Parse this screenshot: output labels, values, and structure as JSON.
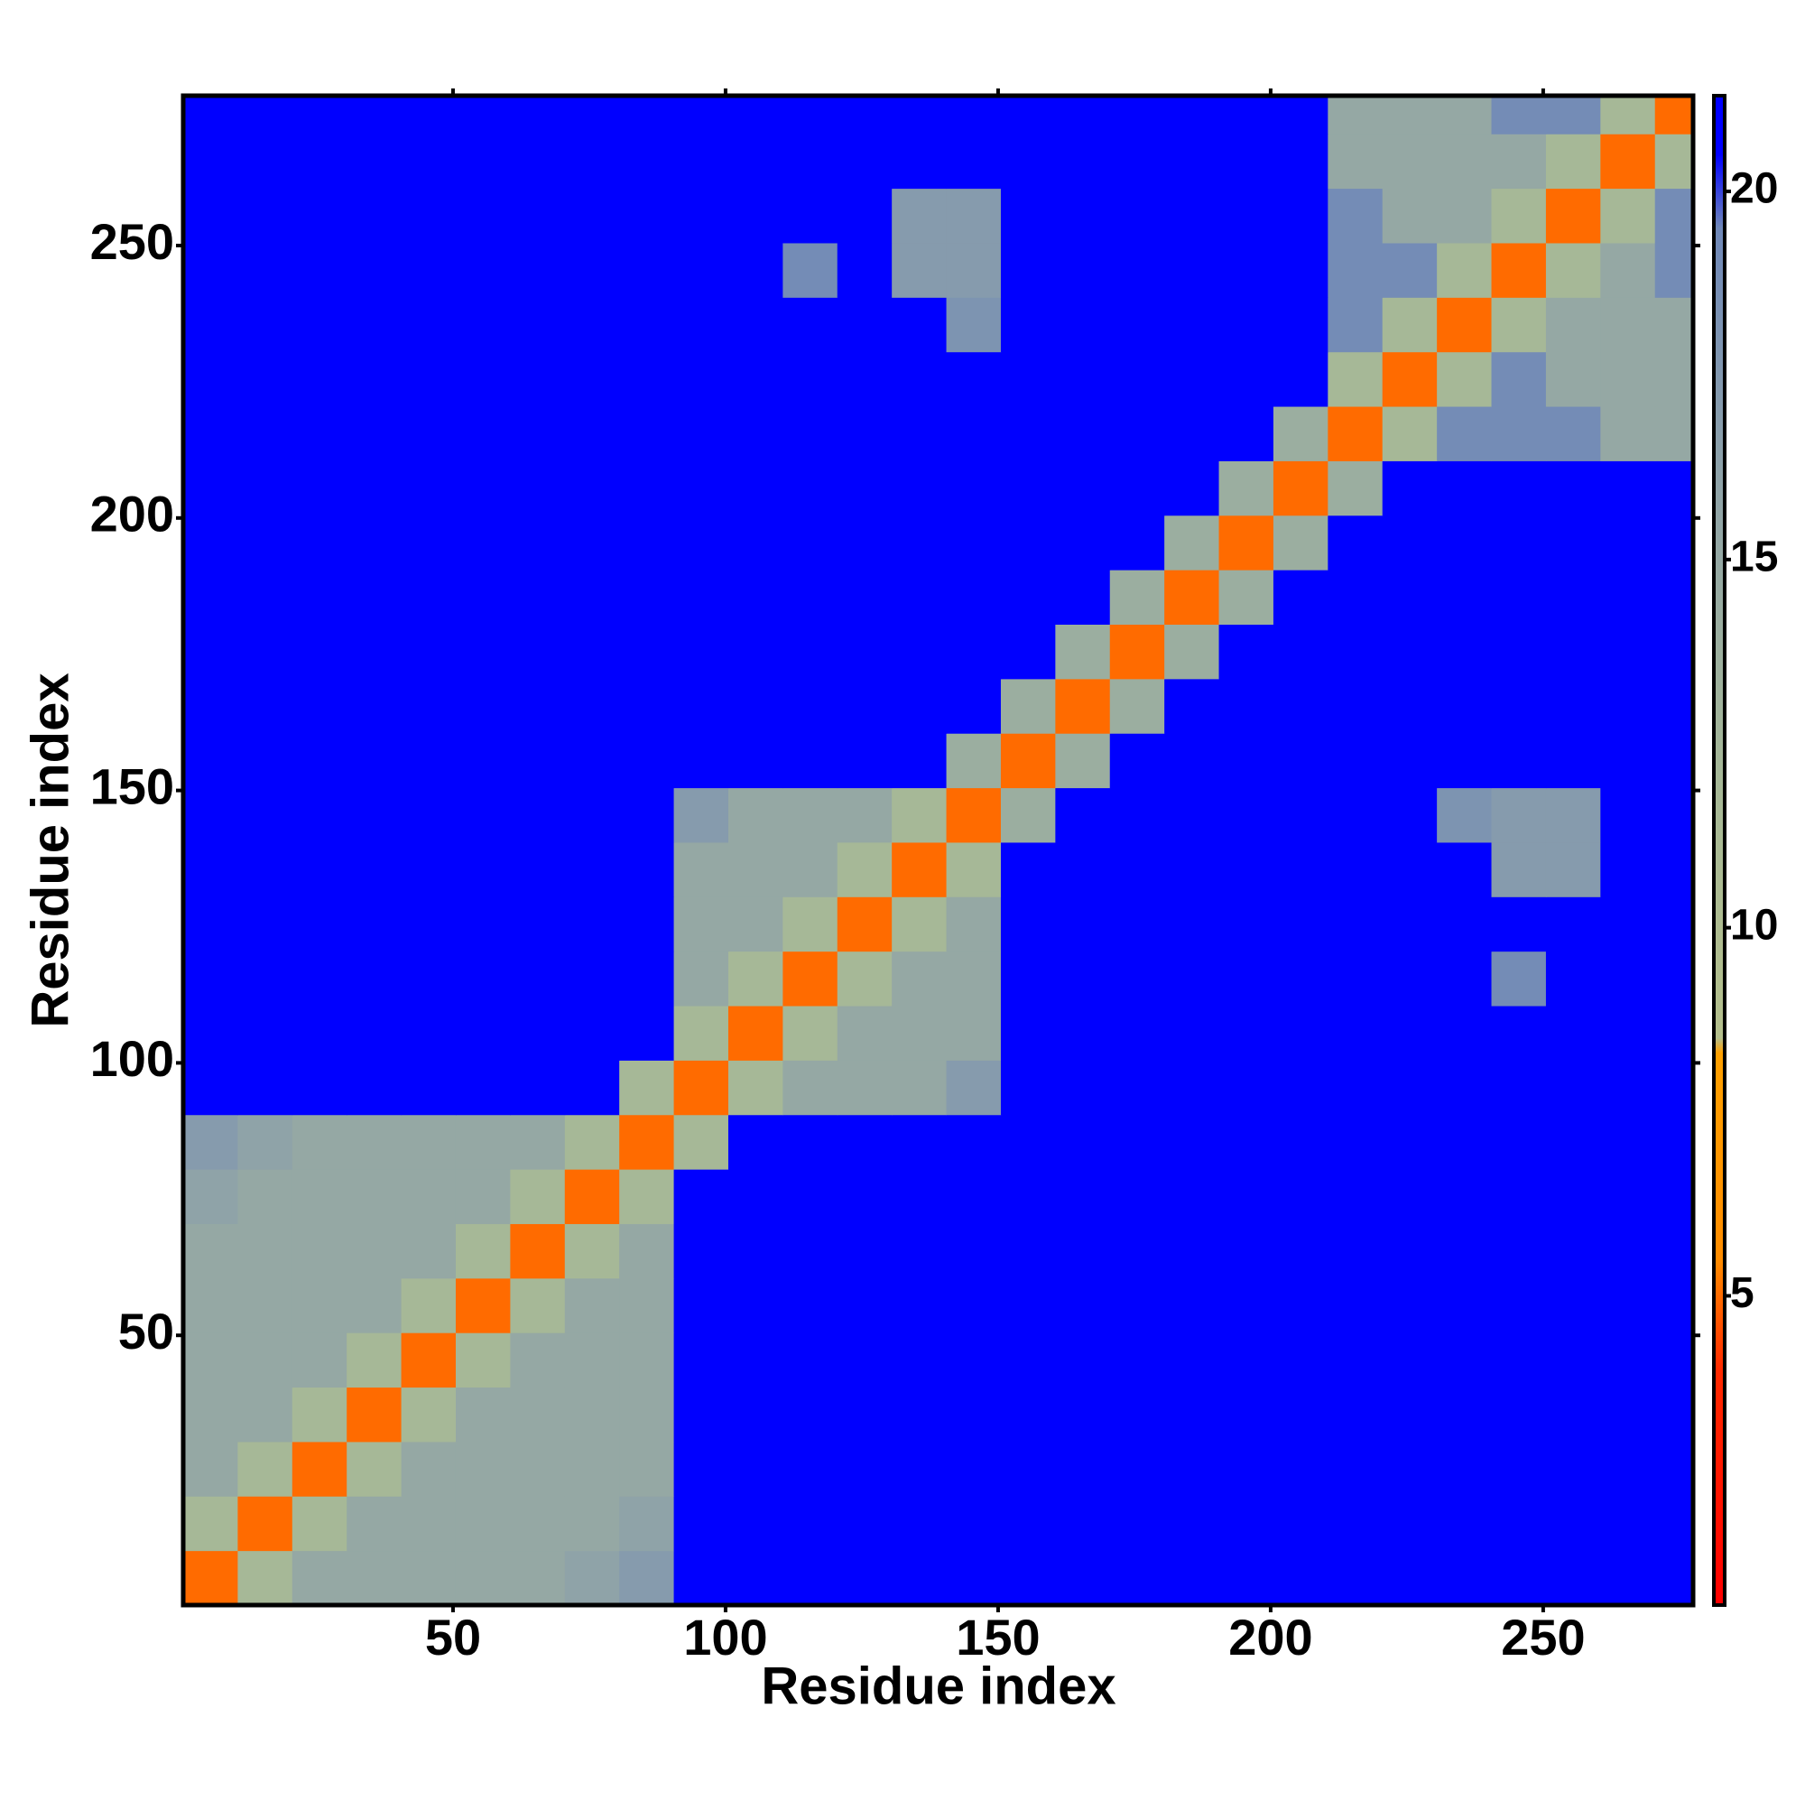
{
  "chart_data": {
    "type": "heatmap",
    "x_label": "Residue index",
    "y_label": "Residue index",
    "bins": [
      0.5,
      10.5,
      20.5,
      30.5,
      40.5,
      50.5,
      60.5,
      70.5,
      80.5,
      90.5,
      100.5,
      110.5,
      120.5,
      130.5,
      140.5,
      150.5,
      160.5,
      170.5,
      180.5,
      190.5,
      200.5,
      210.5,
      220.5,
      230.5,
      240.5,
      250.5,
      260.5,
      270.5,
      277.5
    ],
    "xlim": [
      0.5,
      277.5
    ],
    "ylim": [
      0.5,
      277.5
    ],
    "xticks": [
      50,
      100,
      150,
      200,
      250
    ],
    "yticks": [
      50,
      100,
      150,
      200,
      250
    ],
    "values": [
      [
        5,
        12,
        15,
        15,
        15,
        15,
        15,
        16,
        17,
        21,
        21,
        21,
        21,
        21,
        21,
        21,
        21,
        21,
        21,
        21,
        21,
        21,
        21,
        21,
        21,
        21,
        21,
        21
      ],
      [
        12,
        5,
        12,
        15,
        15,
        15,
        15,
        15,
        16,
        21,
        21,
        21,
        21,
        21,
        21,
        21,
        21,
        21,
        21,
        21,
        21,
        21,
        21,
        21,
        21,
        21,
        21,
        21
      ],
      [
        15,
        12,
        5,
        12,
        15,
        15,
        15,
        15,
        15,
        21,
        21,
        21,
        21,
        21,
        21,
        21,
        21,
        21,
        21,
        21,
        21,
        21,
        21,
        21,
        21,
        21,
        21,
        21
      ],
      [
        15,
        15,
        12,
        5,
        12,
        15,
        15,
        15,
        15,
        21,
        21,
        21,
        21,
        21,
        21,
        21,
        21,
        21,
        21,
        21,
        21,
        21,
        21,
        21,
        21,
        21,
        21,
        21
      ],
      [
        15,
        15,
        15,
        12,
        5,
        12,
        15,
        15,
        15,
        21,
        21,
        21,
        21,
        21,
        21,
        21,
        21,
        21,
        21,
        21,
        21,
        21,
        21,
        21,
        21,
        21,
        21,
        21
      ],
      [
        15,
        15,
        15,
        15,
        12,
        5,
        12,
        15,
        15,
        21,
        21,
        21,
        21,
        21,
        21,
        21,
        21,
        21,
        21,
        21,
        21,
        21,
        21,
        21,
        21,
        21,
        21,
        21
      ],
      [
        15,
        15,
        15,
        15,
        15,
        12,
        5,
        12,
        15,
        21,
        21,
        21,
        21,
        21,
        21,
        21,
        21,
        21,
        21,
        21,
        21,
        21,
        21,
        21,
        21,
        21,
        21,
        21
      ],
      [
        16,
        15,
        15,
        15,
        15,
        15,
        12,
        5,
        12,
        21,
        21,
        21,
        21,
        21,
        21,
        21,
        21,
        21,
        21,
        21,
        21,
        21,
        21,
        21,
        21,
        21,
        21,
        21
      ],
      [
        17,
        16,
        15,
        15,
        15,
        15,
        15,
        12,
        5,
        12,
        21,
        21,
        21,
        21,
        21,
        21,
        21,
        21,
        21,
        21,
        21,
        21,
        21,
        21,
        21,
        21,
        21,
        21
      ],
      [
        21,
        21,
        21,
        21,
        21,
        21,
        21,
        21,
        12,
        5,
        12,
        15,
        15,
        15,
        17,
        21,
        21,
        21,
        21,
        21,
        21,
        21,
        21,
        21,
        21,
        21,
        21,
        21
      ],
      [
        21,
        21,
        21,
        21,
        21,
        21,
        21,
        21,
        21,
        12,
        5,
        12,
        15,
        15,
        15,
        21,
        21,
        21,
        21,
        21,
        21,
        21,
        21,
        21,
        21,
        21,
        21,
        21
      ],
      [
        21,
        21,
        21,
        21,
        21,
        21,
        21,
        21,
        21,
        15,
        12,
        5,
        12,
        15,
        15,
        21,
        21,
        21,
        21,
        21,
        21,
        21,
        21,
        21,
        19,
        21,
        21,
        21
      ],
      [
        21,
        21,
        21,
        21,
        21,
        21,
        21,
        21,
        21,
        15,
        15,
        12,
        5,
        12,
        15,
        21,
        21,
        21,
        21,
        21,
        21,
        21,
        21,
        21,
        21,
        21,
        21,
        21
      ],
      [
        21,
        21,
        21,
        21,
        21,
        21,
        21,
        21,
        21,
        15,
        15,
        15,
        12,
        5,
        12,
        21,
        21,
        21,
        21,
        21,
        21,
        21,
        21,
        21,
        17,
        17,
        21,
        21
      ],
      [
        21,
        21,
        21,
        21,
        21,
        21,
        21,
        21,
        21,
        17,
        15,
        15,
        15,
        12,
        5,
        14,
        21,
        21,
        21,
        21,
        21,
        21,
        21,
        18,
        17,
        17,
        21,
        21
      ],
      [
        21,
        21,
        21,
        21,
        21,
        21,
        21,
        21,
        21,
        21,
        21,
        21,
        21,
        21,
        14,
        5,
        14,
        21,
        21,
        21,
        21,
        21,
        21,
        21,
        21,
        21,
        21,
        21
      ],
      [
        21,
        21,
        21,
        21,
        21,
        21,
        21,
        21,
        21,
        21,
        21,
        21,
        21,
        21,
        21,
        14,
        5,
        14,
        21,
        21,
        21,
        21,
        21,
        21,
        21,
        21,
        21,
        21
      ],
      [
        21,
        21,
        21,
        21,
        21,
        21,
        21,
        21,
        21,
        21,
        21,
        21,
        21,
        21,
        21,
        21,
        14,
        5,
        14,
        21,
        21,
        21,
        21,
        21,
        21,
        21,
        21,
        21
      ],
      [
        21,
        21,
        21,
        21,
        21,
        21,
        21,
        21,
        21,
        21,
        21,
        21,
        21,
        21,
        21,
        21,
        21,
        14,
        5,
        14,
        21,
        21,
        21,
        21,
        21,
        21,
        21,
        21
      ],
      [
        21,
        21,
        21,
        21,
        21,
        21,
        21,
        21,
        21,
        21,
        21,
        21,
        21,
        21,
        21,
        21,
        21,
        21,
        14,
        5,
        14,
        21,
        21,
        21,
        21,
        21,
        21,
        21
      ],
      [
        21,
        21,
        21,
        21,
        21,
        21,
        21,
        21,
        21,
        21,
        21,
        21,
        21,
        21,
        21,
        21,
        21,
        21,
        21,
        14,
        5,
        14,
        21,
        21,
        21,
        21,
        21,
        21
      ],
      [
        21,
        21,
        21,
        21,
        21,
        21,
        21,
        21,
        21,
        21,
        21,
        21,
        21,
        21,
        21,
        21,
        21,
        21,
        21,
        21,
        14,
        5,
        12,
        19,
        19,
        19,
        15,
        15
      ],
      [
        21,
        21,
        21,
        21,
        21,
        21,
        21,
        21,
        21,
        21,
        21,
        21,
        21,
        21,
        21,
        21,
        21,
        21,
        21,
        21,
        21,
        12,
        5,
        12,
        19,
        15,
        15,
        15
      ],
      [
        21,
        21,
        21,
        21,
        21,
        21,
        21,
        21,
        21,
        21,
        21,
        21,
        21,
        21,
        18,
        21,
        21,
        21,
        21,
        21,
        21,
        19,
        12,
        5,
        12,
        15,
        15,
        15
      ],
      [
        21,
        21,
        21,
        21,
        21,
        21,
        21,
        21,
        21,
        21,
        21,
        19,
        21,
        17,
        17,
        21,
        21,
        21,
        21,
        21,
        21,
        19,
        19,
        12,
        5,
        12,
        15,
        19
      ],
      [
        21,
        21,
        21,
        21,
        21,
        21,
        21,
        21,
        21,
        21,
        21,
        21,
        21,
        17,
        17,
        21,
        21,
        21,
        21,
        21,
        21,
        19,
        15,
        15,
        12,
        5,
        12,
        19
      ],
      [
        21,
        21,
        21,
        21,
        21,
        21,
        21,
        21,
        21,
        21,
        21,
        21,
        21,
        21,
        21,
        21,
        21,
        21,
        21,
        21,
        21,
        15,
        15,
        15,
        15,
        12,
        5,
        12
      ],
      [
        21,
        21,
        21,
        21,
        21,
        21,
        21,
        21,
        21,
        21,
        21,
        21,
        21,
        21,
        21,
        21,
        21,
        21,
        21,
        21,
        21,
        15,
        15,
        15,
        19,
        19,
        12,
        5
      ]
    ],
    "colorscale": [
      [
        0.8,
        "#ff0000"
      ],
      [
        4,
        "#ff2a00"
      ],
      [
        5.5,
        "#ff8c00"
      ],
      [
        8.3,
        "#ffa000"
      ],
      [
        8.5,
        "#b4bf8c"
      ],
      [
        12,
        "#a6b897"
      ],
      [
        16,
        "#8fa3a8"
      ],
      [
        19.5,
        "#7088b8"
      ],
      [
        20.5,
        "#0000ff"
      ],
      [
        21.3,
        "#0000ff"
      ]
    ],
    "clim": [
      0.8,
      21.3
    ],
    "cticks": [
      5,
      10,
      15,
      20
    ]
  }
}
